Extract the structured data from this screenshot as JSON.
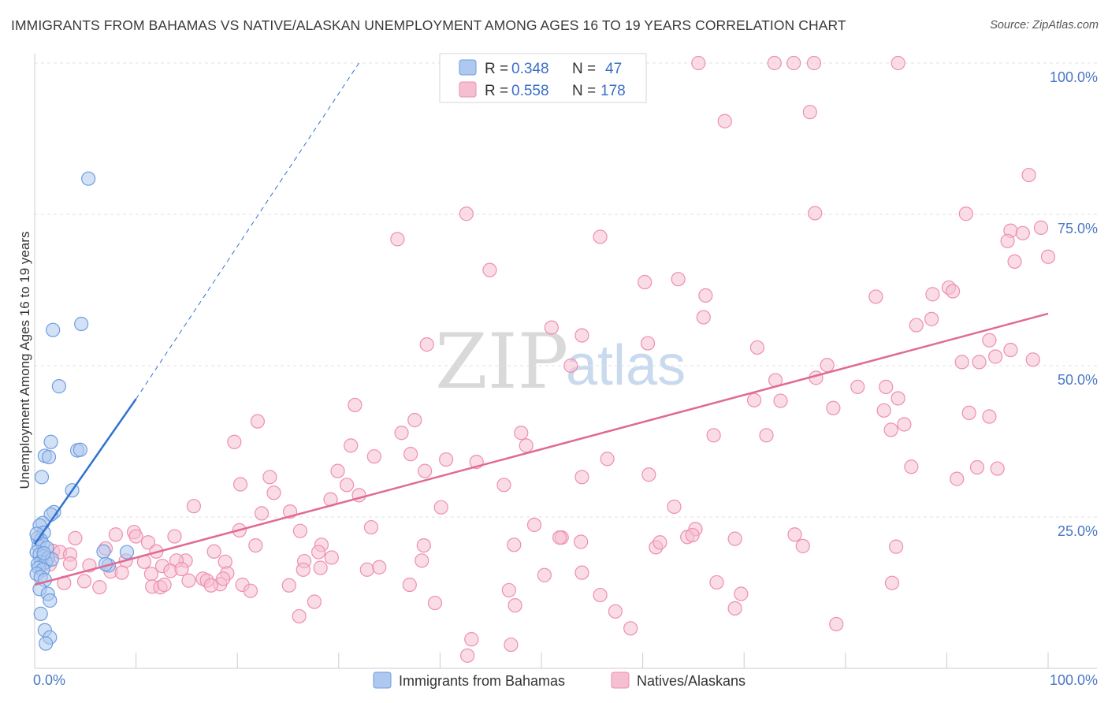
{
  "header": {
    "title": "IMMIGRANTS FROM BAHAMAS VS NATIVE/ALASKAN UNEMPLOYMENT AMONG AGES 16 TO 19 YEARS CORRELATION CHART",
    "source": "Source: ZipAtlas.com"
  },
  "watermark": {
    "zip": "ZIP",
    "atlas": "atlas"
  },
  "colors": {
    "blue_fill": "#aec8ef",
    "blue_stroke": "#6e9ee0",
    "blue_line": "#2f72d0",
    "pink_fill": "#f6bfd1",
    "pink_stroke": "#ee8fae",
    "pink_line": "#e06a93",
    "grid": "#e2e2e2",
    "axis": "#cccccc",
    "tick_text": "#4a78c4"
  },
  "legend": {
    "rows": [
      {
        "r_label": "R = ",
        "r_value": "0.348",
        "n_label": "N = ",
        "n_value": "47",
        "series": "blue"
      },
      {
        "r_label": "R = ",
        "r_value": "0.558",
        "n_label": "N = ",
        "n_value": "178",
        "series": "pink"
      }
    ]
  },
  "chart_data": {
    "type": "scatter",
    "title": "IMMIGRANTS FROM BAHAMAS VS NATIVE/ALASKAN UNEMPLOYMENT AMONG AGES 16 TO 19 YEARS CORRELATION CHART",
    "xlabel": "",
    "ylabel": "Unemployment Among Ages 16 to 19 years",
    "xlim": [
      0,
      100
    ],
    "ylim": [
      0,
      100
    ],
    "x_tick_labels": {
      "left": "0.0%",
      "right": "100.0%"
    },
    "y_ticks": [
      {
        "value": 25,
        "label": "25.0%"
      },
      {
        "value": 50,
        "label": "50.0%"
      },
      {
        "value": 75,
        "label": "75.0%"
      },
      {
        "value": 100,
        "label": "100.0%"
      }
    ],
    "grid": true,
    "legend_position": "top-center",
    "series": [
      {
        "name": "Immigrants from Bahamas",
        "color": "blue",
        "R": 0.348,
        "N": 47,
        "trend": {
          "x0": 0,
          "y0": 20.5,
          "x1": 10,
          "y1": 44.5,
          "dash_to_x": 32,
          "dash_to_y": 100
        },
        "points": [
          [
            5.3,
            80.9
          ],
          [
            1.8,
            55.9
          ],
          [
            4.6,
            56.9
          ],
          [
            2.4,
            46.6
          ],
          [
            1.6,
            37.4
          ],
          [
            1.0,
            35.1
          ],
          [
            1.4,
            34.9
          ],
          [
            4.2,
            36.0
          ],
          [
            4.5,
            36.1
          ],
          [
            0.7,
            31.6
          ],
          [
            3.7,
            29.4
          ],
          [
            1.9,
            25.8
          ],
          [
            1.6,
            25.4
          ],
          [
            0.8,
            24.0
          ],
          [
            0.5,
            23.6
          ],
          [
            0.9,
            22.4
          ],
          [
            0.3,
            21.5
          ],
          [
            0.6,
            21.2
          ],
          [
            0.4,
            20.2
          ],
          [
            0.8,
            20.5
          ],
          [
            1.2,
            19.9
          ],
          [
            0.2,
            19.2
          ],
          [
            0.5,
            18.8
          ],
          [
            0.9,
            18.5
          ],
          [
            1.3,
            18.2
          ],
          [
            0.6,
            17.6
          ],
          [
            0.3,
            17.2
          ],
          [
            1.1,
            17.5
          ],
          [
            0.4,
            16.6
          ],
          [
            0.8,
            16.3
          ],
          [
            0.2,
            15.6
          ],
          [
            0.6,
            15.1
          ],
          [
            1.0,
            14.6
          ],
          [
            0.5,
            13.1
          ],
          [
            1.3,
            12.3
          ],
          [
            1.5,
            11.2
          ],
          [
            0.6,
            9.0
          ],
          [
            1.0,
            6.3
          ],
          [
            1.5,
            5.1
          ],
          [
            1.1,
            4.1
          ],
          [
            6.8,
            19.3
          ],
          [
            9.1,
            19.2
          ],
          [
            7.3,
            17.0
          ],
          [
            7.0,
            17.2
          ],
          [
            1.7,
            18.0
          ],
          [
            0.2,
            22.2
          ],
          [
            0.9,
            19.0
          ]
        ]
      },
      {
        "name": "Natives/Alaskans",
        "color": "pink",
        "R": 0.558,
        "N": 178,
        "trend": {
          "x0": 0,
          "y0": 13.8,
          "x1": 100,
          "y1": 58.6
        },
        "points": [
          [
            65.5,
            100.0
          ],
          [
            73.0,
            100.0
          ],
          [
            74.9,
            100.0
          ],
          [
            76.9,
            100.0
          ],
          [
            85.2,
            100.0
          ],
          [
            68.1,
            90.4
          ],
          [
            76.5,
            91.9
          ],
          [
            98.1,
            81.5
          ],
          [
            42.6,
            75.1
          ],
          [
            77.0,
            75.2
          ],
          [
            91.9,
            75.1
          ],
          [
            35.8,
            70.9
          ],
          [
            55.8,
            71.3
          ],
          [
            96.3,
            72.3
          ],
          [
            97.5,
            71.9
          ],
          [
            99.3,
            72.8
          ],
          [
            96.0,
            70.6
          ],
          [
            96.7,
            67.2
          ],
          [
            100.0,
            68.0
          ],
          [
            44.9,
            65.8
          ],
          [
            60.2,
            63.8
          ],
          [
            63.5,
            64.3
          ],
          [
            66.2,
            61.6
          ],
          [
            83.0,
            61.4
          ],
          [
            90.2,
            62.9
          ],
          [
            90.6,
            62.3
          ],
          [
            88.6,
            61.8
          ],
          [
            66.0,
            58.0
          ],
          [
            51.0,
            56.3
          ],
          [
            54.0,
            55.0
          ],
          [
            87.0,
            56.7
          ],
          [
            88.5,
            57.7
          ],
          [
            38.7,
            53.5
          ],
          [
            60.5,
            53.7
          ],
          [
            71.3,
            53.0
          ],
          [
            94.2,
            54.2
          ],
          [
            96.3,
            52.6
          ],
          [
            52.9,
            50.0
          ],
          [
            78.2,
            50.1
          ],
          [
            73.1,
            47.6
          ],
          [
            77.1,
            48.0
          ],
          [
            81.2,
            46.5
          ],
          [
            84.0,
            46.5
          ],
          [
            94.8,
            51.5
          ],
          [
            91.5,
            50.6
          ],
          [
            93.2,
            50.6
          ],
          [
            98.5,
            51.0
          ],
          [
            71.0,
            44.3
          ],
          [
            73.6,
            44.2
          ],
          [
            78.8,
            43.0
          ],
          [
            83.8,
            42.6
          ],
          [
            85.2,
            44.6
          ],
          [
            92.2,
            42.2
          ],
          [
            94.2,
            41.6
          ],
          [
            31.6,
            43.5
          ],
          [
            22.0,
            40.8
          ],
          [
            37.5,
            41.0
          ],
          [
            31.2,
            36.8
          ],
          [
            36.2,
            38.9
          ],
          [
            48.0,
            38.9
          ],
          [
            48.5,
            36.8
          ],
          [
            67.0,
            38.5
          ],
          [
            72.2,
            38.5
          ],
          [
            84.5,
            39.4
          ],
          [
            85.8,
            40.3
          ],
          [
            19.7,
            37.4
          ],
          [
            33.5,
            35.0
          ],
          [
            37.1,
            35.4
          ],
          [
            40.6,
            34.5
          ],
          [
            43.6,
            34.1
          ],
          [
            56.5,
            34.6
          ],
          [
            86.5,
            33.3
          ],
          [
            93.0,
            33.2
          ],
          [
            95.0,
            33.0
          ],
          [
            20.3,
            30.4
          ],
          [
            23.2,
            31.6
          ],
          [
            29.9,
            32.6
          ],
          [
            30.8,
            30.3
          ],
          [
            38.5,
            32.6
          ],
          [
            46.3,
            30.3
          ],
          [
            54.0,
            31.6
          ],
          [
            60.6,
            32.0
          ],
          [
            91.0,
            31.3
          ],
          [
            23.6,
            29.0
          ],
          [
            29.2,
            27.9
          ],
          [
            32.0,
            28.6
          ],
          [
            40.1,
            26.6
          ],
          [
            15.7,
            26.8
          ],
          [
            22.4,
            25.6
          ],
          [
            25.2,
            25.9
          ],
          [
            63.1,
            26.7
          ],
          [
            20.2,
            22.8
          ],
          [
            26.2,
            22.7
          ],
          [
            33.2,
            23.3
          ],
          [
            49.3,
            23.7
          ],
          [
            65.2,
            23.0
          ],
          [
            75.0,
            22.1
          ],
          [
            64.4,
            21.7
          ],
          [
            64.9,
            22.0
          ],
          [
            69.1,
            21.4
          ],
          [
            52.0,
            21.6
          ],
          [
            51.8,
            21.6
          ],
          [
            9.8,
            22.5
          ],
          [
            10.0,
            21.8
          ],
          [
            13.8,
            21.8
          ],
          [
            8.0,
            22.1
          ],
          [
            11.2,
            20.8
          ],
          [
            4.0,
            21.5
          ],
          [
            1.8,
            19.4
          ],
          [
            2.5,
            19.2
          ],
          [
            3.5,
            18.8
          ],
          [
            1.5,
            17.2
          ],
          [
            7.0,
            19.8
          ],
          [
            12.0,
            19.3
          ],
          [
            14.9,
            17.8
          ],
          [
            17.7,
            19.3
          ],
          [
            21.8,
            20.3
          ],
          [
            28.3,
            20.4
          ],
          [
            38.4,
            20.3
          ],
          [
            47.3,
            20.4
          ],
          [
            53.9,
            20.9
          ],
          [
            61.3,
            20.0
          ],
          [
            61.7,
            20.8
          ],
          [
            75.8,
            20.2
          ],
          [
            85.0,
            20.1
          ],
          [
            9.0,
            17.8
          ],
          [
            10.8,
            17.6
          ],
          [
            12.6,
            16.9
          ],
          [
            14.0,
            17.8
          ],
          [
            18.8,
            17.6
          ],
          [
            26.6,
            17.7
          ],
          [
            28.0,
            19.2
          ],
          [
            28.2,
            16.6
          ],
          [
            29.3,
            18.3
          ],
          [
            32.8,
            16.3
          ],
          [
            34.0,
            16.7
          ],
          [
            38.2,
            17.8
          ],
          [
            3.5,
            17.3
          ],
          [
            5.4,
            17.0
          ],
          [
            7.5,
            16.0
          ],
          [
            8.6,
            15.8
          ],
          [
            11.5,
            15.6
          ],
          [
            13.4,
            16.1
          ],
          [
            14.5,
            16.4
          ],
          [
            16.6,
            14.8
          ],
          [
            17.0,
            14.5
          ],
          [
            19.0,
            15.7
          ],
          [
            20.5,
            13.8
          ],
          [
            18.3,
            13.9
          ],
          [
            2.9,
            14.1
          ],
          [
            4.9,
            14.4
          ],
          [
            6.4,
            13.4
          ],
          [
            11.6,
            13.5
          ],
          [
            12.4,
            13.4
          ],
          [
            15.2,
            14.5
          ],
          [
            17.4,
            13.7
          ],
          [
            18.6,
            14.8
          ],
          [
            21.3,
            12.8
          ],
          [
            25.1,
            13.7
          ],
          [
            37.0,
            13.8
          ],
          [
            46.8,
            12.9
          ],
          [
            50.3,
            15.4
          ],
          [
            54.0,
            15.8
          ],
          [
            55.8,
            12.1
          ],
          [
            67.3,
            14.2
          ],
          [
            69.7,
            12.3
          ],
          [
            84.6,
            14.1
          ],
          [
            12.8,
            13.8
          ],
          [
            26.5,
            16.3
          ],
          [
            27.6,
            11.0
          ],
          [
            39.5,
            10.8
          ],
          [
            47.4,
            10.4
          ],
          [
            57.3,
            9.4
          ],
          [
            69.1,
            9.9
          ],
          [
            26.1,
            8.6
          ],
          [
            58.8,
            6.6
          ],
          [
            79.1,
            7.3
          ],
          [
            43.1,
            4.8
          ],
          [
            42.7,
            2.1
          ],
          [
            47.0,
            3.9
          ]
        ]
      }
    ]
  },
  "bottom_legend": [
    {
      "label": "Immigrants from Bahamas",
      "series": "blue"
    },
    {
      "label": "Natives/Alaskans",
      "series": "pink"
    }
  ]
}
